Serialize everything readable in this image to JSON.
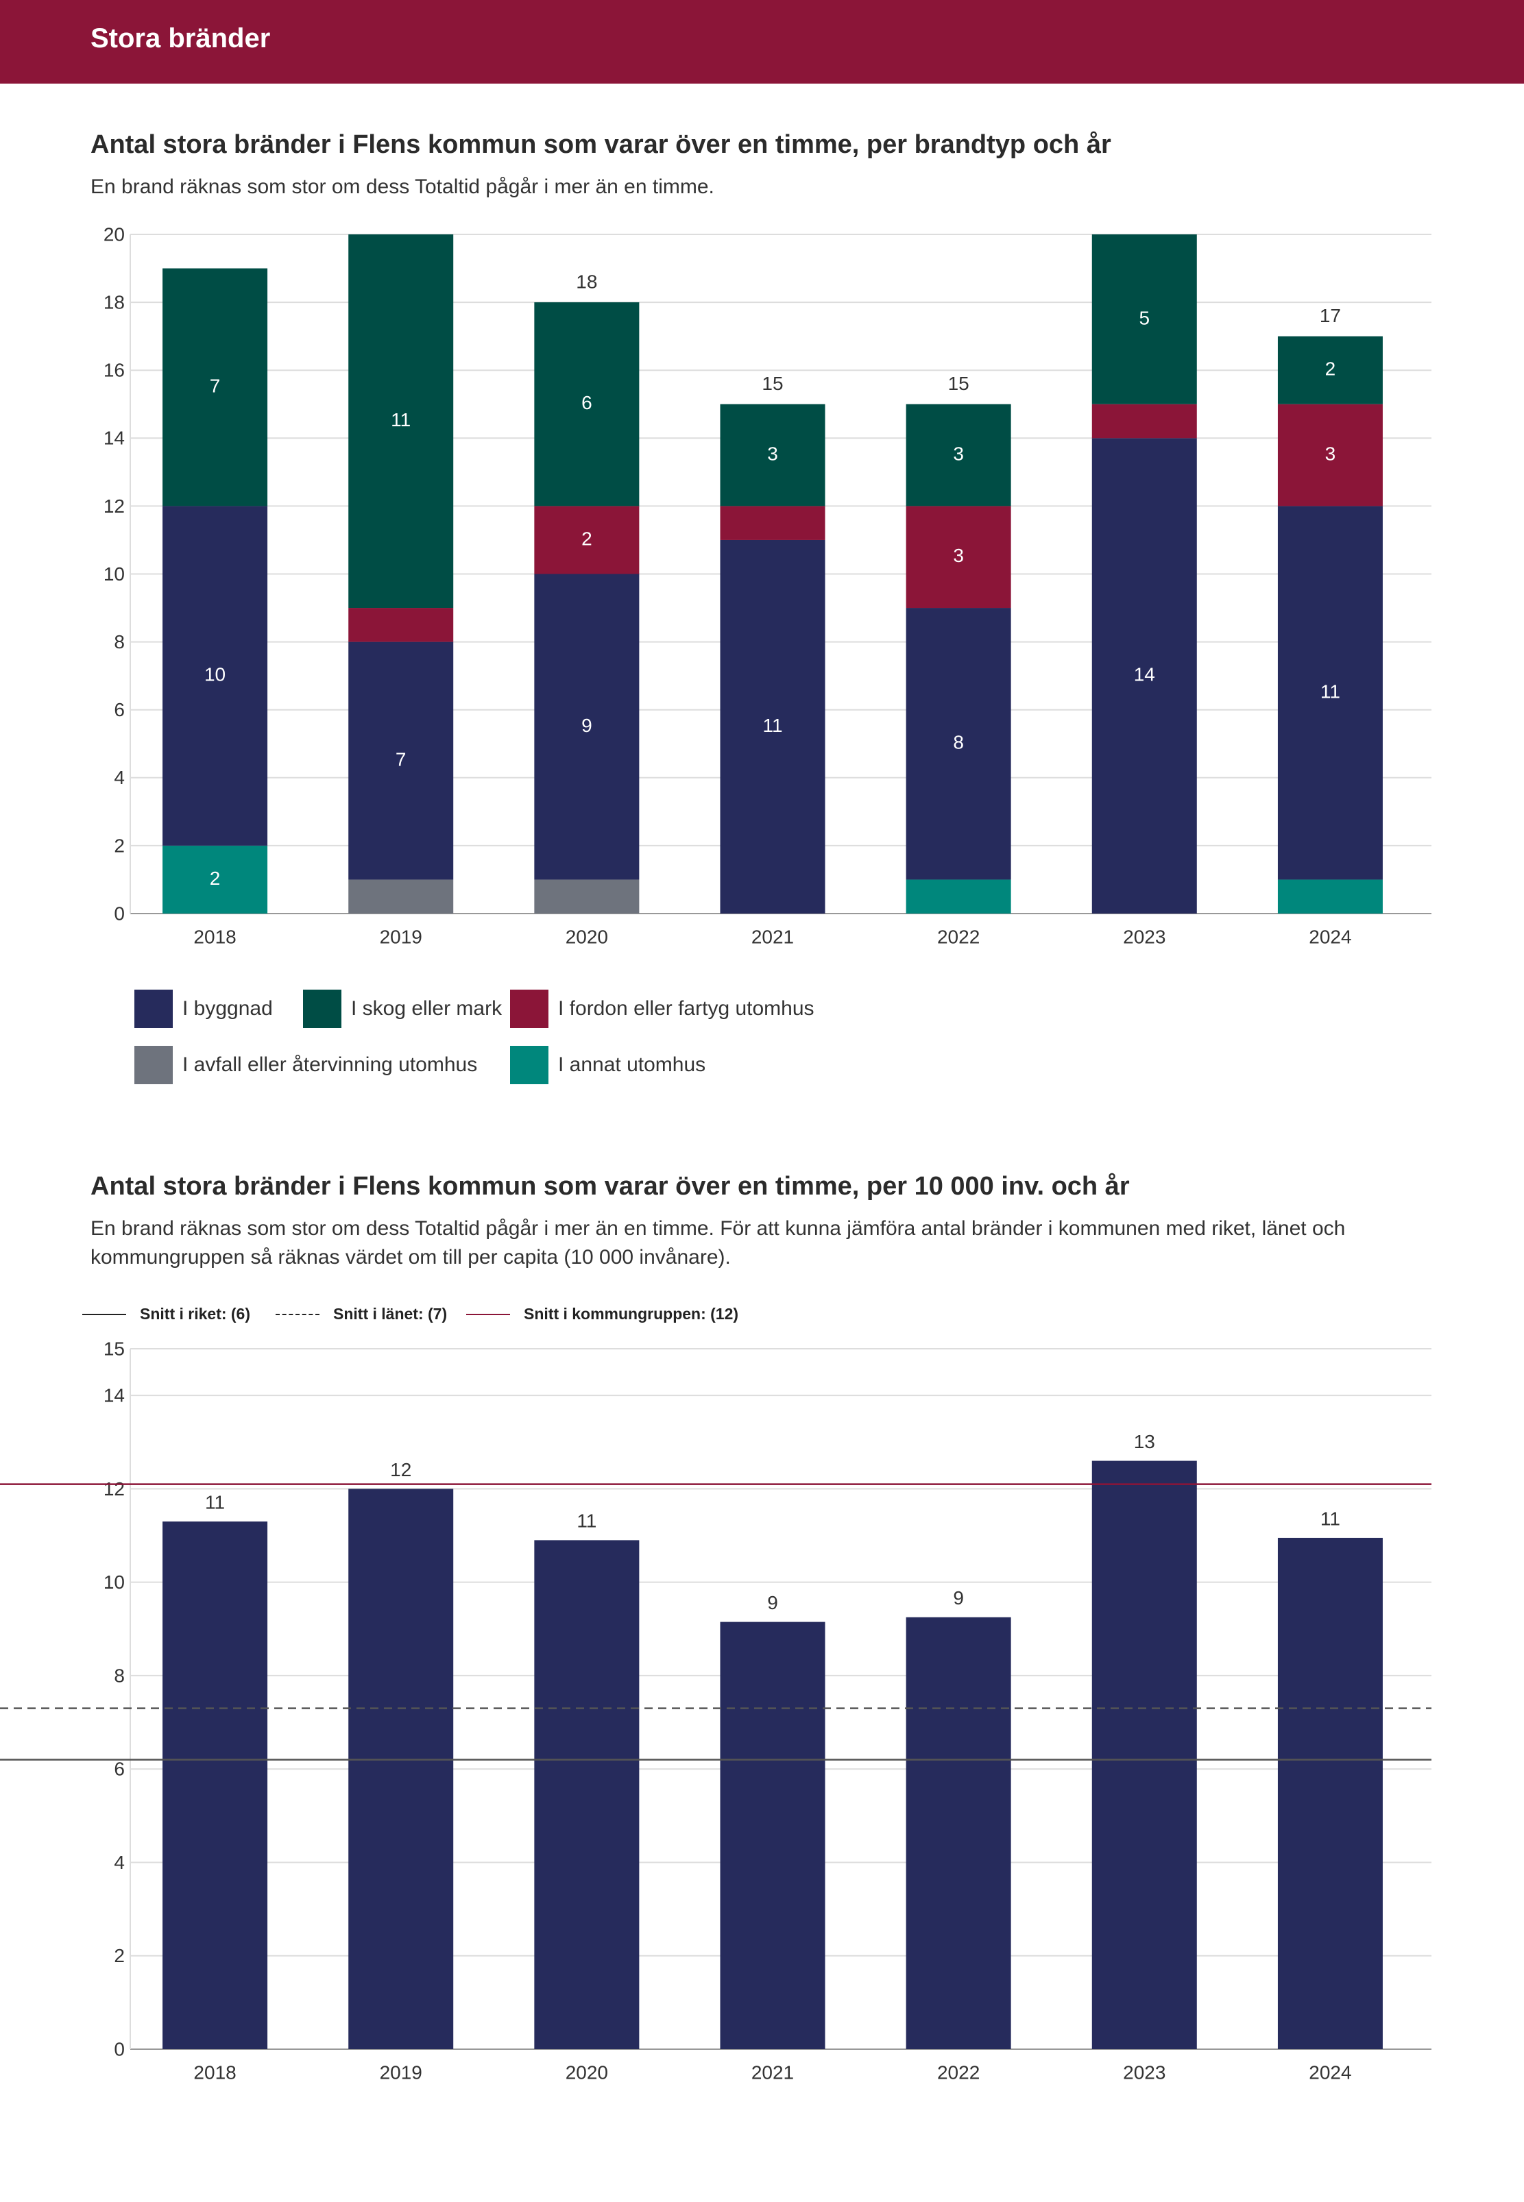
{
  "header": {
    "title": "Stora bränder"
  },
  "section1": {
    "title": "Antal stora bränder i Flens kommun som varar över en timme, per brandtyp och år",
    "description": "En brand räknas som stor om dess Totaltid pågår i mer än en timme."
  },
  "section2": {
    "title": "Antal stora bränder i Flens kommun som varar över en timme, per 10 000 inv. och år",
    "description": "En brand räknas som stor om dess Totaltid pågår i mer än en timme. För att kunna jämföra antal bränder i kommunen med riket, länet och kommungruppen så räknas värdet om till per capita (10 000 invånare)."
  },
  "legend1": [
    {
      "label": "I byggnad",
      "color": "#262b5c"
    },
    {
      "label": "I skog eller mark",
      "color": "#004d45"
    },
    {
      "label": "I fordon eller fartyg utomhus",
      "color": "#8b1538"
    },
    {
      "label": "I avfall eller återvinning utomhus",
      "color": "#6e737d"
    },
    {
      "label": "I annat utomhus",
      "color": "#00877c"
    }
  ],
  "legend2": [
    {
      "label": "Snitt i riket: (6)",
      "style": "solid",
      "color": "#222222"
    },
    {
      "label": "Snitt i länet: (7)",
      "style": "dashed",
      "color": "#222222"
    },
    {
      "label": "Snitt i kommungruppen: (12)",
      "style": "solid",
      "color": "#8b1538"
    }
  ],
  "chart_data": [
    {
      "type": "bar",
      "stacked": true,
      "title": "Antal stora bränder i Flens kommun som varar över en timme, per brandtyp och år",
      "categories": [
        "2018",
        "2019",
        "2020",
        "2021",
        "2022",
        "2023",
        "2024"
      ],
      "ylim": [
        0,
        20
      ],
      "yticks": [
        0,
        2,
        4,
        6,
        8,
        10,
        12,
        14,
        16,
        18,
        20
      ],
      "series": [
        {
          "name": "I annat utomhus",
          "color": "#00877c",
          "values": [
            2,
            0,
            0,
            0,
            1,
            0,
            1
          ],
          "labels": [
            "2",
            "",
            "",
            "",
            "",
            "",
            ""
          ]
        },
        {
          "name": "I avfall eller återvinning utomhus",
          "color": "#6e737d",
          "values": [
            0,
            1,
            1,
            0,
            0,
            0,
            0
          ],
          "labels": [
            "",
            "",
            "",
            "",
            "",
            "",
            ""
          ]
        },
        {
          "name": "I byggnad",
          "color": "#262b5c",
          "values": [
            10,
            7,
            9,
            11,
            8,
            14,
            11
          ],
          "labels": [
            "10",
            "7",
            "9",
            "11",
            "8",
            "14",
            "11"
          ]
        },
        {
          "name": "I fordon eller fartyg utomhus",
          "color": "#8b1538",
          "values": [
            0,
            1,
            2,
            1,
            3,
            1,
            3
          ],
          "labels": [
            "",
            "",
            "2",
            "",
            "3",
            "",
            "3"
          ]
        },
        {
          "name": "I skog eller mark",
          "color": "#004d45",
          "values": [
            7,
            11,
            6,
            3,
            3,
            5,
            2
          ],
          "labels": [
            "7",
            "11",
            "6",
            "3",
            "3",
            "5",
            "2"
          ]
        }
      ],
      "totals": [
        "",
        "",
        "18",
        "15",
        "15",
        "",
        "17"
      ]
    },
    {
      "type": "bar",
      "title": "Antal stora bränder i Flens kommun som varar över en timme, per 10 000 inv. och år",
      "categories": [
        "2018",
        "2019",
        "2020",
        "2021",
        "2022",
        "2023",
        "2024"
      ],
      "values": [
        11.3,
        12.0,
        10.9,
        9.15,
        9.25,
        12.6,
        10.95
      ],
      "value_labels": [
        "11",
        "12",
        "11",
        "9",
        "9",
        "13",
        "11"
      ],
      "color": "#262b5c",
      "ylim": [
        0,
        15
      ],
      "yticks": [
        0,
        2,
        4,
        6,
        8,
        10,
        12,
        14,
        15
      ],
      "reference_lines": [
        {
          "name": "Snitt i riket",
          "value": 6.2,
          "style": "solid",
          "color": "#555555"
        },
        {
          "name": "Snitt i länet",
          "value": 7.3,
          "style": "dashed",
          "color": "#555555"
        },
        {
          "name": "Snitt i kommungruppen",
          "value": 12.1,
          "style": "solid",
          "color": "#8b1538"
        }
      ]
    }
  ]
}
